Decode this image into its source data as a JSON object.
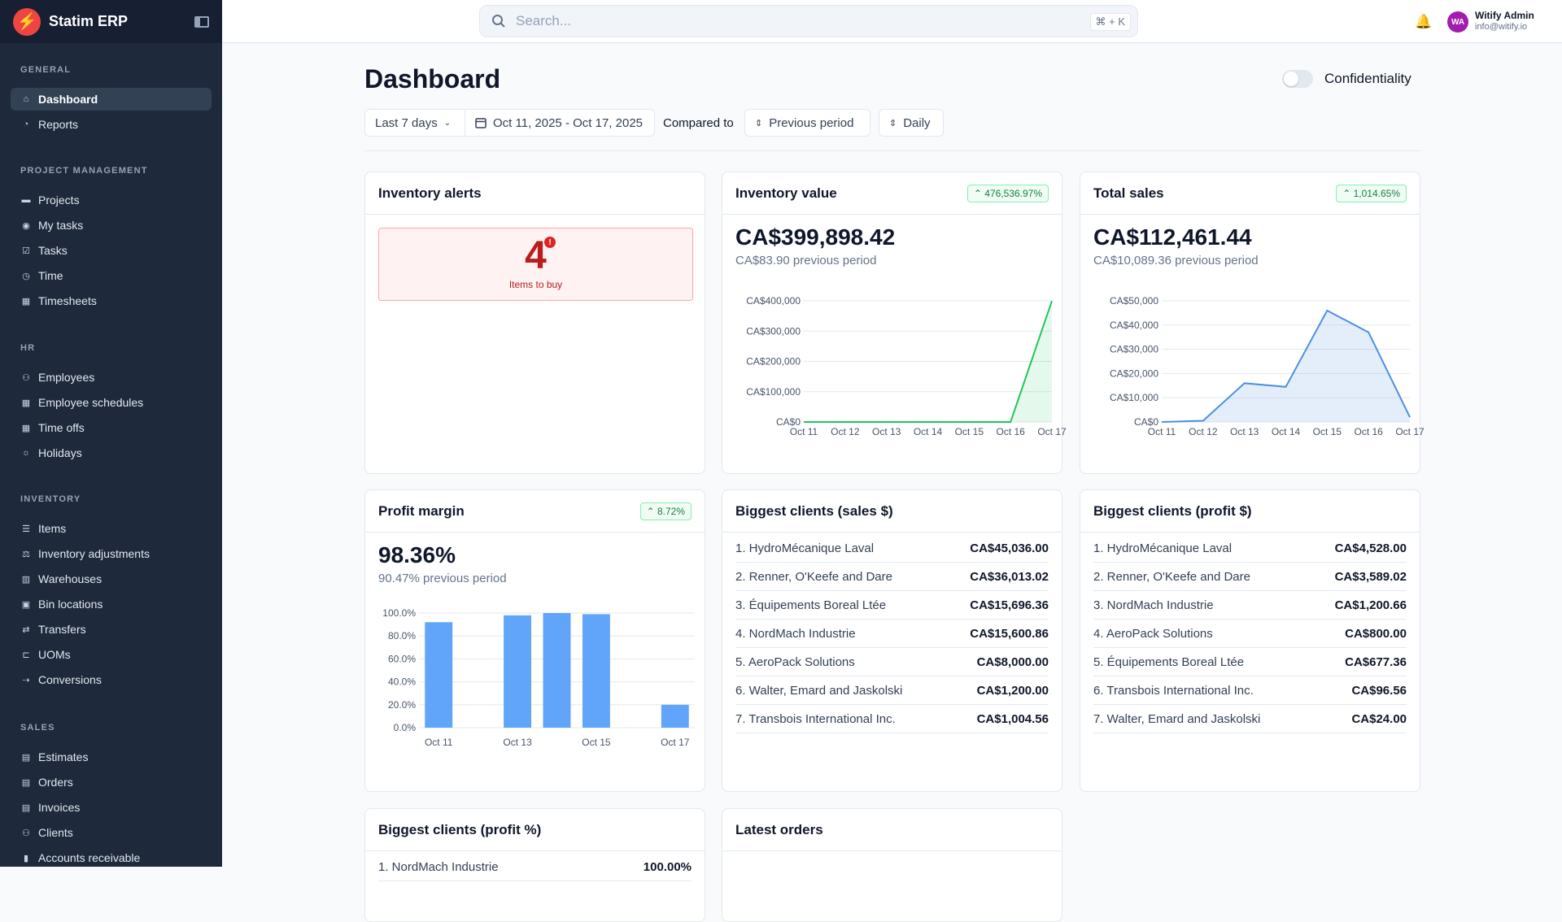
{
  "app": {
    "name": "Statim ERP"
  },
  "search": {
    "placeholder": "Search...",
    "shortcut": "⌘ + K"
  },
  "user": {
    "initials": "WA",
    "name": "Witify Admin",
    "email": "info@witify.io"
  },
  "sidebar": {
    "sections": [
      {
        "title": "GENERAL",
        "items": [
          {
            "label": "Dashboard",
            "icon": "home-icon",
            "active": true
          },
          {
            "label": "Reports",
            "icon": "pie-chart-icon"
          }
        ]
      },
      {
        "title": "PROJECT MANAGEMENT",
        "items": [
          {
            "label": "Projects",
            "icon": "folder-icon"
          },
          {
            "label": "My tasks",
            "icon": "user-circle-icon"
          },
          {
            "label": "Tasks",
            "icon": "tasks-icon"
          },
          {
            "label": "Time",
            "icon": "clock-icon"
          },
          {
            "label": "Timesheets",
            "icon": "calendar-icon"
          }
        ]
      },
      {
        "title": "HR",
        "items": [
          {
            "label": "Employees",
            "icon": "users-icon"
          },
          {
            "label": "Employee schedules",
            "icon": "calendar-icon"
          },
          {
            "label": "Time offs",
            "icon": "calendar-icon"
          },
          {
            "label": "Holidays",
            "icon": "sun-icon"
          }
        ]
      },
      {
        "title": "INVENTORY",
        "items": [
          {
            "label": "Items",
            "icon": "database-icon"
          },
          {
            "label": "Inventory adjustments",
            "icon": "adjust-icon"
          },
          {
            "label": "Warehouses",
            "icon": "building-icon"
          },
          {
            "label": "Bin locations",
            "icon": "box-icon"
          },
          {
            "label": "Transfers",
            "icon": "transfer-icon"
          },
          {
            "label": "UOMs",
            "icon": "ruler-icon"
          },
          {
            "label": "Conversions",
            "icon": "arrows-icon"
          }
        ]
      },
      {
        "title": "SALES",
        "items": [
          {
            "label": "Estimates",
            "icon": "document-icon"
          },
          {
            "label": "Orders",
            "icon": "document-icon"
          },
          {
            "label": "Invoices",
            "icon": "document-icon"
          },
          {
            "label": "Clients",
            "icon": "users-icon"
          },
          {
            "label": "Accounts receivable",
            "icon": "bar-chart-icon"
          }
        ]
      }
    ]
  },
  "main": {
    "title": "Dashboard",
    "confidentiality": {
      "label": "Confidentiality",
      "on": false
    },
    "filters": {
      "range": "Last 7 days",
      "dates": "Oct 11, 2025 - Oct 17, 2025",
      "compared_label": "Compared to",
      "compare": "Previous period",
      "granularity": "Daily"
    }
  },
  "cards": {
    "inventory_alerts": {
      "title": "Inventory alerts",
      "count": "4",
      "dot": "!",
      "label": "Items to buy"
    },
    "inventory_value": {
      "title": "Inventory value",
      "badge": "476,536.97%",
      "value": "CA$399,898.42",
      "previous": "CA$83.90 previous period"
    },
    "total_sales": {
      "title": "Total sales",
      "badge": "1,014.65%",
      "value": "CA$112,461.44",
      "previous": "CA$10,089.36 previous period"
    },
    "profit_margin": {
      "title": "Profit margin",
      "badge": "8.72%",
      "value": "98.36%",
      "previous": "90.47% previous period"
    },
    "clients_sales": {
      "title": "Biggest clients (sales $)",
      "rows": [
        {
          "name": "1. HydroMécanique Laval",
          "value": "CA$45,036.00"
        },
        {
          "name": "2. Renner, O'Keefe and Dare",
          "value": "CA$36,013.02"
        },
        {
          "name": "3. Équipements Boreal Ltée",
          "value": "CA$15,696.36"
        },
        {
          "name": "4. NordMach Industrie",
          "value": "CA$15,600.86"
        },
        {
          "name": "5. AeroPack Solutions",
          "value": "CA$8,000.00"
        },
        {
          "name": "6. Walter, Emard and Jaskolski",
          "value": "CA$1,200.00"
        },
        {
          "name": "7. Transbois International Inc.",
          "value": "CA$1,004.56"
        }
      ]
    },
    "clients_profit": {
      "title": "Biggest clients (profit $)",
      "rows": [
        {
          "name": "1. HydroMécanique Laval",
          "value": "CA$4,528.00"
        },
        {
          "name": "2. Renner, O'Keefe and Dare",
          "value": "CA$3,589.02"
        },
        {
          "name": "3. NordMach Industrie",
          "value": "CA$1,200.66"
        },
        {
          "name": "4. AeroPack Solutions",
          "value": "CA$800.00"
        },
        {
          "name": "5. Équipements Boreal Ltée",
          "value": "CA$677.36"
        },
        {
          "name": "6. Transbois International Inc.",
          "value": "CA$96.56"
        },
        {
          "name": "7. Walter, Emard and Jaskolski",
          "value": "CA$24.00"
        }
      ]
    },
    "clients_profit_pct": {
      "title": "Biggest clients (profit %)",
      "rows": [
        {
          "name": "1. NordMach Industrie",
          "value": "100.00%"
        }
      ]
    },
    "latest_orders": {
      "title": "Latest orders"
    }
  },
  "colors": {
    "line": "#22c55e",
    "area": "#4a90e2",
    "bar": "#60a5fa",
    "badge": "#15803d"
  },
  "chart_data": [
    {
      "type": "area",
      "title": "Inventory value",
      "x": [
        "Oct 11",
        "Oct 12",
        "Oct 13",
        "Oct 14",
        "Oct 15",
        "Oct 16",
        "Oct 17"
      ],
      "values": [
        0,
        0,
        0,
        0,
        0,
        0,
        399898.42
      ],
      "yticks": [
        "CA$0",
        "CA$100,000",
        "CA$200,000",
        "CA$300,000",
        "CA$400,000"
      ],
      "ylim": [
        0,
        400000
      ]
    },
    {
      "type": "area",
      "title": "Total sales",
      "x": [
        "Oct 11",
        "Oct 12",
        "Oct 13",
        "Oct 14",
        "Oct 15",
        "Oct 16",
        "Oct 17"
      ],
      "values": [
        0,
        500,
        16000,
        14500,
        46000,
        37000,
        2000
      ],
      "yticks": [
        "CA$0",
        "CA$10,000",
        "CA$20,000",
        "CA$30,000",
        "CA$40,000",
        "CA$50,000"
      ],
      "ylim": [
        0,
        50000
      ]
    },
    {
      "type": "bar",
      "title": "Profit margin",
      "x": [
        "Oct 11",
        "Oct 12",
        "Oct 13",
        "Oct 14",
        "Oct 15",
        "Oct 16",
        "Oct 17"
      ],
      "xticks": [
        "Oct 11",
        "Oct 13",
        "Oct 15",
        "Oct 17"
      ],
      "values": [
        92,
        0,
        98,
        100,
        99,
        0,
        20
      ],
      "yticks": [
        "0.0%",
        "20.0%",
        "40.0%",
        "60.0%",
        "80.0%",
        "100.0%"
      ],
      "ylim": [
        0,
        100
      ]
    }
  ]
}
